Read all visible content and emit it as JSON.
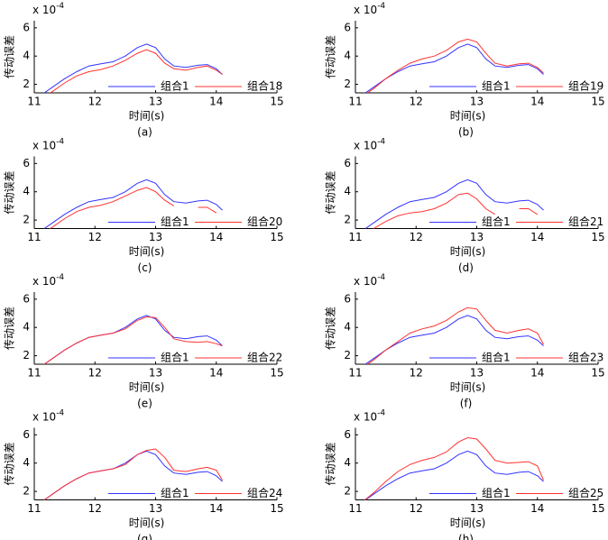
{
  "chart_data": [
    {
      "type": "line",
      "caption": "(a)",
      "xlabel": "时间(s)",
      "ylabel": "传动误差",
      "multiplier": "x 10",
      "multiplier_exp": "-4",
      "xlim": [
        11,
        15
      ],
      "ylim": [
        1.4,
        6.5
      ],
      "xticks": [
        11,
        12,
        13,
        14,
        15
      ],
      "yticks": [
        2,
        4,
        6
      ],
      "legend": "lower right",
      "x": [
        11.1,
        11.3,
        11.5,
        11.7,
        11.9,
        12.1,
        12.3,
        12.5,
        12.7,
        12.85,
        13.0,
        13.15,
        13.3,
        13.5,
        13.7,
        13.85,
        14.0,
        14.1
      ],
      "series": [
        {
          "name": "组合1",
          "color": "#3333ff",
          "values": [
            1.2,
            1.8,
            2.4,
            2.9,
            3.3,
            3.45,
            3.6,
            4.0,
            4.6,
            4.85,
            4.6,
            3.8,
            3.3,
            3.2,
            3.35,
            3.4,
            3.1,
            2.7
          ]
        },
        {
          "name": "组合18",
          "color": "#ff3333",
          "values": [
            1.0,
            1.5,
            2.1,
            2.6,
            2.9,
            3.05,
            3.3,
            3.7,
            4.2,
            4.45,
            4.2,
            3.5,
            3.1,
            3.0,
            3.2,
            3.3,
            3.0,
            2.7
          ]
        }
      ]
    },
    {
      "type": "line",
      "caption": "(b)",
      "xlabel": "时间(s)",
      "ylabel": "传动误差",
      "multiplier": "x 10",
      "multiplier_exp": "-4",
      "xlim": [
        11,
        15
      ],
      "ylim": [
        1.4,
        6.5
      ],
      "xticks": [
        11,
        12,
        13,
        14,
        15
      ],
      "yticks": [
        2,
        4,
        6
      ],
      "legend": "lower right",
      "x": [
        11.1,
        11.3,
        11.5,
        11.7,
        11.9,
        12.1,
        12.3,
        12.5,
        12.7,
        12.85,
        13.0,
        13.15,
        13.3,
        13.5,
        13.7,
        13.85,
        14.0,
        14.1
      ],
      "series": [
        {
          "name": "组合1",
          "color": "#3333ff",
          "values": [
            1.2,
            1.8,
            2.4,
            2.9,
            3.3,
            3.45,
            3.6,
            4.0,
            4.6,
            4.85,
            4.6,
            3.8,
            3.3,
            3.2,
            3.35,
            3.4,
            3.1,
            2.7
          ]
        },
        {
          "name": "组合19",
          "color": "#ff3333",
          "values": [
            1.1,
            1.7,
            2.4,
            3.0,
            3.5,
            3.8,
            4.0,
            4.4,
            5.0,
            5.2,
            5.0,
            4.2,
            3.5,
            3.3,
            3.45,
            3.5,
            3.2,
            2.8
          ]
        }
      ]
    },
    {
      "type": "line",
      "caption": "(c)",
      "xlabel": "时间(s)",
      "ylabel": "传动误差",
      "multiplier": "x 10",
      "multiplier_exp": "-4",
      "xlim": [
        11,
        15
      ],
      "ylim": [
        1.4,
        6.5
      ],
      "xticks": [
        11,
        12,
        13,
        14,
        15
      ],
      "yticks": [
        2,
        4,
        6
      ],
      "legend": "lower right",
      "x": [
        11.1,
        11.3,
        11.5,
        11.7,
        11.9,
        12.1,
        12.3,
        12.5,
        12.7,
        12.85,
        13.0,
        13.15,
        13.3,
        13.5,
        13.7,
        13.85,
        14.0,
        14.1
      ],
      "series": [
        {
          "name": "组合1",
          "color": "#3333ff",
          "values": [
            1.2,
            1.8,
            2.4,
            2.9,
            3.3,
            3.45,
            3.6,
            4.0,
            4.6,
            4.85,
            4.6,
            3.8,
            3.3,
            3.2,
            3.35,
            3.4,
            3.1,
            2.7
          ]
        },
        {
          "name": "组合20",
          "color": "#ff3333",
          "values": [
            1.0,
            1.5,
            2.1,
            2.6,
            2.9,
            3.05,
            3.3,
            3.7,
            4.1,
            4.3,
            4.0,
            3.4,
            3.0,
            null,
            2.9,
            2.9,
            2.5,
            null
          ]
        }
      ]
    },
    {
      "type": "line",
      "caption": "(d)",
      "xlabel": "时间(s)",
      "ylabel": "传动误差",
      "multiplier": "x 10",
      "multiplier_exp": "-4",
      "xlim": [
        11,
        15
      ],
      "ylim": [
        1.4,
        6.5
      ],
      "xticks": [
        11,
        12,
        13,
        14,
        15
      ],
      "yticks": [
        2,
        4,
        6
      ],
      "legend": "lower right",
      "x": [
        11.1,
        11.3,
        11.5,
        11.7,
        11.9,
        12.1,
        12.3,
        12.5,
        12.7,
        12.85,
        13.0,
        13.15,
        13.3,
        13.5,
        13.7,
        13.85,
        14.0,
        14.1
      ],
      "series": [
        {
          "name": "组合1",
          "color": "#3333ff",
          "values": [
            1.2,
            1.8,
            2.4,
            2.9,
            3.3,
            3.45,
            3.6,
            4.0,
            4.6,
            4.85,
            4.6,
            3.8,
            3.3,
            3.2,
            3.35,
            3.4,
            3.1,
            2.7
          ]
        },
        {
          "name": "组合21",
          "color": "#ff3333",
          "values": [
            1.0,
            1.4,
            1.9,
            2.3,
            2.5,
            2.6,
            2.8,
            3.2,
            3.8,
            3.9,
            3.5,
            2.8,
            2.4,
            null,
            2.8,
            2.8,
            2.4,
            null
          ]
        }
      ]
    },
    {
      "type": "line",
      "caption": "(e)",
      "xlabel": "时间(s)",
      "ylabel": "传动误差",
      "multiplier": "x 10",
      "multiplier_exp": "-4",
      "xlim": [
        11,
        15
      ],
      "ylim": [
        1.4,
        6.5
      ],
      "xticks": [
        11,
        12,
        13,
        14,
        15
      ],
      "yticks": [
        2,
        4,
        6
      ],
      "legend": "lower right",
      "x": [
        11.1,
        11.3,
        11.5,
        11.7,
        11.9,
        12.1,
        12.3,
        12.5,
        12.7,
        12.85,
        13.0,
        13.15,
        13.3,
        13.5,
        13.7,
        13.85,
        14.0,
        14.1
      ],
      "series": [
        {
          "name": "组合1",
          "color": "#3333ff",
          "values": [
            1.2,
            1.8,
            2.4,
            2.9,
            3.3,
            3.45,
            3.6,
            4.0,
            4.6,
            4.85,
            4.6,
            3.8,
            3.3,
            3.2,
            3.35,
            3.4,
            3.1,
            2.7
          ]
        },
        {
          "name": "组合22",
          "color": "#ff3333",
          "values": [
            1.2,
            1.8,
            2.4,
            2.9,
            3.3,
            3.45,
            3.6,
            3.9,
            4.5,
            4.75,
            4.7,
            4.0,
            3.2,
            3.0,
            2.95,
            3.0,
            2.85,
            2.7
          ]
        }
      ]
    },
    {
      "type": "line",
      "caption": "(f)",
      "xlabel": "时间(s)",
      "ylabel": "传动误差",
      "multiplier": "x 10",
      "multiplier_exp": "-4",
      "xlim": [
        11,
        15
      ],
      "ylim": [
        1.4,
        6.5
      ],
      "xticks": [
        11,
        12,
        13,
        14,
        15
      ],
      "yticks": [
        2,
        4,
        6
      ],
      "legend": "lower right",
      "x": [
        11.1,
        11.3,
        11.5,
        11.7,
        11.9,
        12.1,
        12.3,
        12.5,
        12.7,
        12.85,
        13.0,
        13.15,
        13.3,
        13.5,
        13.7,
        13.85,
        14.0,
        14.1
      ],
      "series": [
        {
          "name": "组合1",
          "color": "#3333ff",
          "values": [
            1.2,
            1.8,
            2.4,
            2.9,
            3.3,
            3.45,
            3.6,
            4.0,
            4.6,
            4.85,
            4.6,
            3.8,
            3.3,
            3.2,
            3.35,
            3.4,
            3.1,
            2.7
          ]
        },
        {
          "name": "组合23",
          "color": "#ff3333",
          "values": [
            1.1,
            1.7,
            2.4,
            3.0,
            3.6,
            3.9,
            4.1,
            4.5,
            5.1,
            5.4,
            5.3,
            4.5,
            3.8,
            3.6,
            3.8,
            3.9,
            3.6,
            2.8
          ]
        }
      ]
    },
    {
      "type": "line",
      "caption": "(g)",
      "xlabel": "时间(s)",
      "ylabel": "传动误差",
      "multiplier": "x 10",
      "multiplier_exp": "-4",
      "xlim": [
        11,
        15
      ],
      "ylim": [
        1.4,
        6.5
      ],
      "xticks": [
        11,
        12,
        13,
        14,
        15
      ],
      "yticks": [
        2,
        4,
        6
      ],
      "legend": "lower right",
      "x": [
        11.1,
        11.3,
        11.5,
        11.7,
        11.9,
        12.1,
        12.3,
        12.5,
        12.7,
        12.85,
        13.0,
        13.15,
        13.3,
        13.5,
        13.7,
        13.85,
        14.0,
        14.1
      ],
      "series": [
        {
          "name": "组合1",
          "color": "#3333ff",
          "values": [
            1.2,
            1.8,
            2.4,
            2.9,
            3.3,
            3.45,
            3.6,
            4.0,
            4.6,
            4.85,
            4.6,
            3.8,
            3.3,
            3.2,
            3.35,
            3.4,
            3.1,
            2.7
          ]
        },
        {
          "name": "组合24",
          "color": "#ff3333",
          "values": [
            1.2,
            1.8,
            2.4,
            2.9,
            3.3,
            3.45,
            3.6,
            3.9,
            4.6,
            4.9,
            5.0,
            4.4,
            3.5,
            3.4,
            3.6,
            3.7,
            3.5,
            2.8
          ]
        }
      ]
    },
    {
      "type": "line",
      "caption": "(h)",
      "xlabel": "时间(s)",
      "ylabel": "传动误差",
      "multiplier": "x 10",
      "multiplier_exp": "-4",
      "xlim": [
        11,
        15
      ],
      "ylim": [
        1.4,
        6.5
      ],
      "xticks": [
        11,
        12,
        13,
        14,
        15
      ],
      "yticks": [
        2,
        4,
        6
      ],
      "legend": "lower right",
      "x": [
        11.1,
        11.3,
        11.5,
        11.7,
        11.9,
        12.1,
        12.3,
        12.5,
        12.7,
        12.85,
        13.0,
        13.15,
        13.3,
        13.5,
        13.7,
        13.85,
        14.0,
        14.1
      ],
      "series": [
        {
          "name": "组合1",
          "color": "#3333ff",
          "values": [
            1.2,
            1.8,
            2.4,
            2.9,
            3.3,
            3.45,
            3.6,
            4.0,
            4.6,
            4.85,
            4.6,
            3.8,
            3.3,
            3.2,
            3.35,
            3.4,
            3.1,
            2.7
          ]
        },
        {
          "name": "组合25",
          "color": "#ff3333",
          "values": [
            1.2,
            1.9,
            2.7,
            3.4,
            3.9,
            4.2,
            4.4,
            4.8,
            5.5,
            5.8,
            5.7,
            5.0,
            4.2,
            4.0,
            4.05,
            4.1,
            3.8,
            2.8
          ]
        }
      ]
    }
  ]
}
